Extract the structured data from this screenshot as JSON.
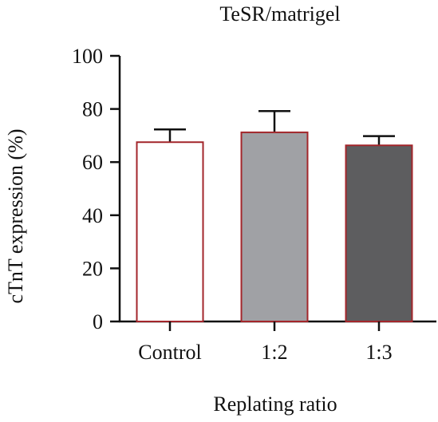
{
  "chart_data": {
    "type": "bar",
    "title": "TeSR/matrigel",
    "xlabel": "Replating ratio",
    "ylabel": "cTnT expression (%)",
    "categories": [
      "Control",
      "1:2",
      "1:3"
    ],
    "values": [
      67.5,
      71.2,
      66.3
    ],
    "errors": [
      4.8,
      8.0,
      3.5
    ],
    "ylim": [
      0,
      100
    ],
    "yticks": [
      0,
      20,
      40,
      60,
      80,
      100
    ],
    "grid": false,
    "colors": {
      "fills": [
        "#ffffff",
        "#a0a1a5",
        "#5d5d5f"
      ],
      "edge": "#a3262b",
      "axis": "#111111",
      "errorbar": "#111111"
    }
  }
}
